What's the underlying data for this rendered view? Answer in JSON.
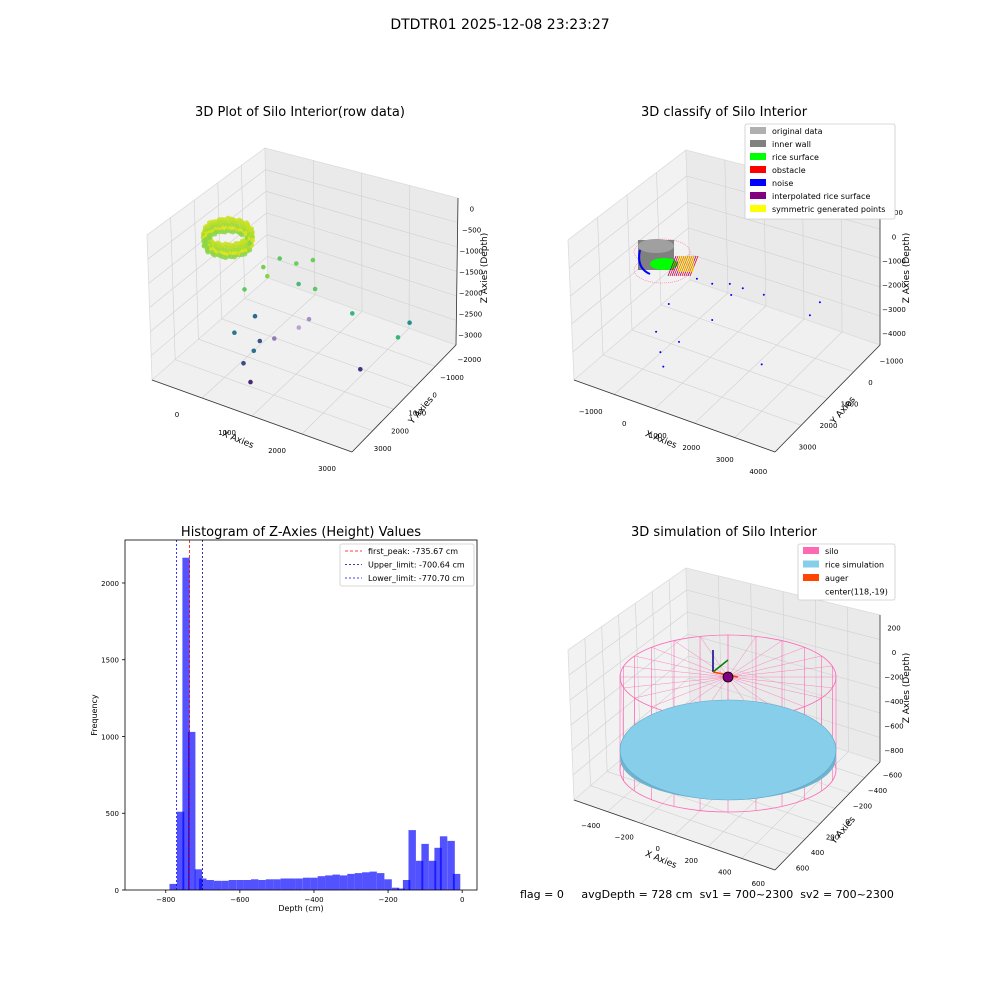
{
  "figure_title": "DTDTR01 2025-12-08 23:23:27",
  "footer": {
    "flag": "flag = 0",
    "avg_depth": "avgDepth = 728 cm",
    "sv1": "sv1 = 700~2300",
    "sv2": "sv2 = 700~2300"
  },
  "chart_data": [
    {
      "type": "scatter",
      "projection": "3d",
      "title": "3D Plot of Silo Interior(row data)",
      "xlabel": "X Axies",
      "ylabel": "Y Axies",
      "zlabel": "Z Axies (Depth)",
      "xticks": [
        "0",
        "1000",
        "2000",
        "3000"
      ],
      "yticks": [
        "−2000",
        "−1000",
        "0",
        "1000",
        "2000",
        "3000"
      ],
      "zticks": [
        "0",
        "−500",
        "−1000",
        "−1500",
        "−2000",
        "−2500",
        "−3000"
      ],
      "xlim": [
        -800,
        3800
      ],
      "ylim": [
        -2200,
        3400
      ],
      "zlim": [
        -3300,
        100
      ],
      "grid": true,
      "colormap": "viridis",
      "cluster": {
        "x_range": [
          -300,
          400
        ],
        "y_range": [
          -200,
          400
        ],
        "z_range": [
          -900,
          -500
        ],
        "note": "dense ring of points near silo wall, colored yellow-green"
      },
      "points": [
        {
          "x": 700,
          "y": 100,
          "z": -1100,
          "color": "#7ccc5a"
        },
        {
          "x": 900,
          "y": 500,
          "z": -1000,
          "color": "#5ec962"
        },
        {
          "x": 1200,
          "y": 700,
          "z": -1100,
          "color": "#6ccf5a"
        },
        {
          "x": 1500,
          "y": 900,
          "z": -1000,
          "color": "#6ccf5a"
        },
        {
          "x": 1300,
          "y": 600,
          "z": -1500,
          "color": "#4cb87a"
        },
        {
          "x": 1600,
          "y": 800,
          "z": -1600,
          "color": "#5ec962"
        },
        {
          "x": 400,
          "y": -200,
          "z": -1600,
          "color": "#60c95f"
        },
        {
          "x": 700,
          "y": 300,
          "z": -1400,
          "color": "#86d549"
        },
        {
          "x": 2300,
          "y": 1200,
          "z": -2100,
          "color": "#35b779"
        },
        {
          "x": 3400,
          "y": 1800,
          "z": -2200,
          "color": "#21918c"
        },
        {
          "x": 3300,
          "y": 1400,
          "z": -2400,
          "color": "#35b779"
        },
        {
          "x": 600,
          "y": -100,
          "z": -2200,
          "color": "#31688e"
        },
        {
          "x": 1500,
          "y": 700,
          "z": -2300,
          "color": "#a78fc6"
        },
        {
          "x": 1400,
          "y": 400,
          "z": -2400,
          "color": "#b9a2d4"
        },
        {
          "x": 400,
          "y": -700,
          "z": -2400,
          "color": "#2a788e"
        },
        {
          "x": 900,
          "y": -500,
          "z": -2500,
          "color": "#3b528b"
        },
        {
          "x": 1100,
          "y": -200,
          "z": -2500,
          "color": "#8f7bb5"
        },
        {
          "x": 900,
          "y": -800,
          "z": -2600,
          "color": "#2c728e"
        },
        {
          "x": 800,
          "y": -1100,
          "z": -2800,
          "color": "#3e4989"
        },
        {
          "x": 2900,
          "y": 300,
          "z": -2800,
          "color": "#46337e"
        },
        {
          "x": 1100,
          "y": -1400,
          "z": -3000,
          "color": "#482878"
        }
      ]
    },
    {
      "type": "scatter",
      "projection": "3d",
      "title": "3D classify of Silo Interior",
      "xlabel": "X Axies",
      "ylabel": "Y Axies",
      "zlabel": "Z Axies (Depth)",
      "xticks": [
        "−1000",
        "0",
        "1000",
        "2000",
        "3000",
        "4000"
      ],
      "yticks": [
        "−1000",
        "0",
        "1000",
        "2000",
        "3000"
      ],
      "zticks": [
        "1000",
        "0",
        "−1000",
        "−2000",
        "−3000",
        "−4000"
      ],
      "xlim": [
        -1200,
        4200
      ],
      "ylim": [
        -1600,
        3400
      ],
      "zlim": [
        -4200,
        1200
      ],
      "grid": true,
      "legend_position": "top-right",
      "legend": [
        {
          "label": "original data",
          "color": "#b0b0b0"
        },
        {
          "label": "inner wall",
          "color": "#808080"
        },
        {
          "label": "rice surface",
          "color": "#00ff00"
        },
        {
          "label": "obstacle",
          "color": "#ff0000"
        },
        {
          "label": "noise",
          "color": "#0000ff"
        },
        {
          "label": "interpolated rice surface",
          "color": "#800080"
        },
        {
          "label": "symmetric generated points",
          "color": "#ffff00"
        }
      ],
      "noise_points": [
        {
          "x": 900,
          "y": 400,
          "z": -800
        },
        {
          "x": 1200,
          "y": 600,
          "z": -1000
        },
        {
          "x": 1500,
          "y": 900,
          "z": -1100
        },
        {
          "x": 1800,
          "y": 1000,
          "z": -1200
        },
        {
          "x": 1600,
          "y": 800,
          "z": -1400
        },
        {
          "x": 2200,
          "y": 1300,
          "z": -1500
        },
        {
          "x": 3400,
          "y": 1900,
          "z": -1700
        },
        {
          "x": 3300,
          "y": 1600,
          "z": -2000
        },
        {
          "x": 500,
          "y": -200,
          "z": -1500
        },
        {
          "x": 1200,
          "y": 600,
          "z": -2400
        },
        {
          "x": 400,
          "y": -600,
          "z": -2300
        },
        {
          "x": 900,
          "y": -400,
          "z": -2600
        },
        {
          "x": 700,
          "y": -900,
          "z": -2700
        },
        {
          "x": 900,
          "y": -1100,
          "z": -3000
        },
        {
          "x": 2800,
          "y": 200,
          "z": -3000
        }
      ]
    },
    {
      "type": "bar",
      "title": "Histogram of Z-Axies (Height) Values",
      "xlabel": "Depth (cm)",
      "ylabel": "Frequency",
      "xlim": [
        -910,
        40
      ],
      "ylim": [
        0,
        2280
      ],
      "xticks": [
        -800,
        -600,
        -400,
        -200,
        0
      ],
      "yticks": [
        0,
        500,
        1000,
        1500,
        2000
      ],
      "bar_color": "#0000ff",
      "bin_width": 20,
      "bins": [
        {
          "x": -780,
          "y": 40
        },
        {
          "x": -760,
          "y": 510
        },
        {
          "x": -745,
          "y": 2165
        },
        {
          "x": -730,
          "y": 1030
        },
        {
          "x": -712,
          "y": 135
        },
        {
          "x": -700,
          "y": 75
        },
        {
          "x": -680,
          "y": 65
        },
        {
          "x": -660,
          "y": 60
        },
        {
          "x": -640,
          "y": 60
        },
        {
          "x": -620,
          "y": 65
        },
        {
          "x": -600,
          "y": 65
        },
        {
          "x": -580,
          "y": 65
        },
        {
          "x": -560,
          "y": 70
        },
        {
          "x": -540,
          "y": 65
        },
        {
          "x": -520,
          "y": 70
        },
        {
          "x": -500,
          "y": 70
        },
        {
          "x": -480,
          "y": 75
        },
        {
          "x": -460,
          "y": 75
        },
        {
          "x": -440,
          "y": 75
        },
        {
          "x": -420,
          "y": 80
        },
        {
          "x": -400,
          "y": 80
        },
        {
          "x": -380,
          "y": 90
        },
        {
          "x": -360,
          "y": 95
        },
        {
          "x": -340,
          "y": 100
        },
        {
          "x": -320,
          "y": 95
        },
        {
          "x": -300,
          "y": 105
        },
        {
          "x": -280,
          "y": 110
        },
        {
          "x": -260,
          "y": 115
        },
        {
          "x": -240,
          "y": 120
        },
        {
          "x": -220,
          "y": 110
        },
        {
          "x": -200,
          "y": 70
        },
        {
          "x": -180,
          "y": 15
        },
        {
          "x": -165,
          "y": 10
        },
        {
          "x": -150,
          "y": 65
        },
        {
          "x": -135,
          "y": 390
        },
        {
          "x": -115,
          "y": 190
        },
        {
          "x": -100,
          "y": 300
        },
        {
          "x": -80,
          "y": 190
        },
        {
          "x": -65,
          "y": 275
        },
        {
          "x": -50,
          "y": 350
        },
        {
          "x": -30,
          "y": 320
        },
        {
          "x": -15,
          "y": 105
        }
      ],
      "vlines": [
        {
          "label": "first_peak: -735.67 cm",
          "x": -735.67,
          "color": "#ff0000"
        },
        {
          "label": "Upper_limit: -700.64 cm",
          "x": -700.64,
          "color": "#00008b"
        },
        {
          "label": "Lower_limit: -770.70 cm",
          "x": -770.7,
          "color": "#0000ff"
        }
      ],
      "legend_position": "top-right"
    },
    {
      "type": "surface",
      "projection": "3d",
      "title": "3D simulation of Silo Interior",
      "xlabel": "X Axies",
      "ylabel": "Y Axies",
      "zlabel": "Z Axies (Depth)",
      "xticks": [
        "−400",
        "−200",
        "0",
        "200",
        "400",
        "600"
      ],
      "yticks": [
        "−600",
        "−400",
        "−200",
        "0",
        "200",
        "400",
        "600"
      ],
      "zticks": [
        "200",
        "0",
        "−200",
        "−400",
        "−600",
        "−800"
      ],
      "legend_position": "top-right",
      "legend": [
        {
          "label": "silo",
          "color": "#ff69b4"
        },
        {
          "label": "rice simulation",
          "color": "#87ceeb"
        },
        {
          "label": "auger",
          "color": "#ff4500"
        },
        {
          "label": "center(118,-19)",
          "color": ""
        }
      ],
      "silo_radius": 600,
      "rice_depth": -728,
      "center": {
        "x": 118,
        "y": -19
      }
    }
  ]
}
